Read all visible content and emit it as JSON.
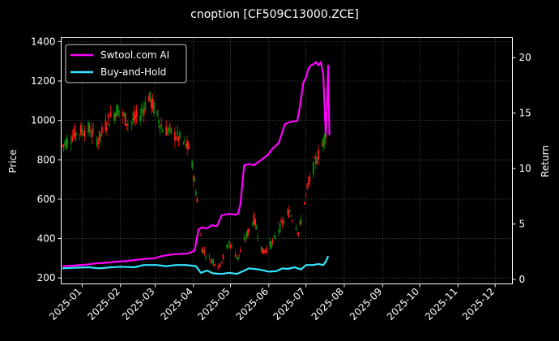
{
  "chart_data": {
    "type": "line",
    "title": "cnoption [CF509C13000.ZCE]",
    "ylabel_left": "Price",
    "ylabel_right": "Return",
    "x_tick_labels": [
      "2025-01",
      "2025-02",
      "2025-03",
      "2025-04",
      "2025-05",
      "2025-06",
      "2025-07",
      "2025-08",
      "2025-09",
      "2025-10",
      "2025-11",
      "2025-12"
    ],
    "x_range": [
      "2024-12-15",
      "2025-12-15"
    ],
    "left_ylim": [
      170,
      1420
    ],
    "left_ticks": [
      200,
      400,
      600,
      800,
      1000,
      1200,
      1400
    ],
    "right_ylim": [
      -0.4,
      21.8
    ],
    "right_ticks": [
      0,
      5,
      10,
      15,
      20
    ],
    "grid": true,
    "legend_position": "upper-left",
    "colors": {
      "up": "#ff1a1a",
      "down": "#0a8c0a",
      "strategy": "#ff00ff",
      "buyhold": "#33e5ff",
      "grid": "#555555",
      "background": "#000000"
    },
    "series": [
      {
        "name": "Swtool.com AI",
        "axis": "right",
        "points": [
          [
            "2024-12-16",
            1.2
          ],
          [
            "2024-12-25",
            1.25
          ],
          [
            "2025-01-06",
            1.35
          ],
          [
            "2025-01-12",
            1.45
          ],
          [
            "2025-01-20",
            1.5
          ],
          [
            "2025-01-28",
            1.6
          ],
          [
            "2025-02-05",
            1.65
          ],
          [
            "2025-02-12",
            1.75
          ],
          [
            "2025-02-20",
            1.85
          ],
          [
            "2025-02-28",
            1.9
          ],
          [
            "2025-03-06",
            2.1
          ],
          [
            "2025-03-14",
            2.25
          ],
          [
            "2025-03-22",
            2.3
          ],
          [
            "2025-03-28",
            2.35
          ],
          [
            "2025-03-31",
            2.5
          ],
          [
            "2025-04-02",
            2.6
          ],
          [
            "2025-04-05",
            4.5
          ],
          [
            "2025-04-08",
            4.7
          ],
          [
            "2025-04-12",
            4.6
          ],
          [
            "2025-04-16",
            4.9
          ],
          [
            "2025-04-20",
            4.8
          ],
          [
            "2025-04-24",
            5.8
          ],
          [
            "2025-04-30",
            5.9
          ],
          [
            "2025-05-05",
            5.85
          ],
          [
            "2025-05-07",
            5.9
          ],
          [
            "2025-05-09",
            6.8
          ],
          [
            "2025-05-12",
            10.3
          ],
          [
            "2025-05-16",
            10.4
          ],
          [
            "2025-05-20",
            10.3
          ],
          [
            "2025-05-26",
            10.8
          ],
          [
            "2025-05-31",
            11.2
          ],
          [
            "2025-06-04",
            11.8
          ],
          [
            "2025-06-09",
            12.3
          ],
          [
            "2025-06-14",
            14.0
          ],
          [
            "2025-06-18",
            14.2
          ],
          [
            "2025-06-24",
            14.3
          ],
          [
            "2025-06-26",
            15.5
          ],
          [
            "2025-06-29",
            17.8
          ],
          [
            "2025-07-01",
            18.2
          ],
          [
            "2025-07-03",
            19.0
          ],
          [
            "2025-07-05",
            19.3
          ],
          [
            "2025-07-07",
            19.4
          ],
          [
            "2025-07-09",
            19.6
          ],
          [
            "2025-07-11",
            19.3
          ],
          [
            "2025-07-13",
            19.6
          ],
          [
            "2025-07-15",
            18.5
          ],
          [
            "2025-07-17",
            13.0
          ],
          [
            "2025-07-18",
            15.5
          ],
          [
            "2025-07-19",
            19.3
          ],
          [
            "2025-07-20",
            13.0
          ]
        ]
      },
      {
        "name": "Buy-and-Hold",
        "axis": "right",
        "points": [
          [
            "2024-12-16",
            1.0
          ],
          [
            "2024-12-25",
            1.05
          ],
          [
            "2025-01-06",
            1.1
          ],
          [
            "2025-01-15",
            1.0
          ],
          [
            "2025-01-24",
            1.1
          ],
          [
            "2025-02-02",
            1.15
          ],
          [
            "2025-02-12",
            1.1
          ],
          [
            "2025-02-20",
            1.3
          ],
          [
            "2025-03-02",
            1.3
          ],
          [
            "2025-03-10",
            1.2
          ],
          [
            "2025-03-18",
            1.3
          ],
          [
            "2025-03-26",
            1.3
          ],
          [
            "2025-04-03",
            1.2
          ],
          [
            "2025-04-07",
            0.6
          ],
          [
            "2025-04-12",
            0.8
          ],
          [
            "2025-04-17",
            0.55
          ],
          [
            "2025-04-24",
            0.5
          ],
          [
            "2025-04-30",
            0.6
          ],
          [
            "2025-05-06",
            0.5
          ],
          [
            "2025-05-12",
            0.8
          ],
          [
            "2025-05-16",
            1.0
          ],
          [
            "2025-05-24",
            0.9
          ],
          [
            "2025-06-01",
            0.7
          ],
          [
            "2025-06-07",
            0.75
          ],
          [
            "2025-06-12",
            1.0
          ],
          [
            "2025-06-16",
            0.95
          ],
          [
            "2025-06-22",
            1.1
          ],
          [
            "2025-06-27",
            0.9
          ],
          [
            "2025-07-01",
            1.3
          ],
          [
            "2025-07-07",
            1.3
          ],
          [
            "2025-07-11",
            1.4
          ],
          [
            "2025-07-15",
            1.3
          ],
          [
            "2025-07-17",
            1.6
          ],
          [
            "2025-07-19",
            2.1
          ]
        ]
      }
    ],
    "candles_region_approx": [
      [
        "2024-12-16",
        870
      ],
      [
        "2024-12-25",
        930
      ],
      [
        "2025-01-05",
        960
      ],
      [
        "2025-01-14",
        900
      ],
      [
        "2025-01-22",
        1000
      ],
      [
        "2025-01-30",
        1060
      ],
      [
        "2025-02-08",
        980
      ],
      [
        "2025-02-17",
        1030
      ],
      [
        "2025-02-24",
        1120
      ],
      [
        "2025-03-07",
        960
      ],
      [
        "2025-03-14",
        940
      ],
      [
        "2025-03-22",
        900
      ],
      [
        "2025-03-29",
        850
      ],
      [
        "2025-04-04",
        600
      ],
      [
        "2025-04-08",
        350
      ],
      [
        "2025-04-14",
        300
      ],
      [
        "2025-04-22",
        260
      ],
      [
        "2025-04-30",
        380
      ],
      [
        "2025-05-07",
        300
      ],
      [
        "2025-05-13",
        400
      ],
      [
        "2025-05-20",
        500
      ],
      [
        "2025-05-27",
        330
      ],
      [
        "2025-06-04",
        380
      ],
      [
        "2025-06-11",
        470
      ],
      [
        "2025-06-18",
        540
      ],
      [
        "2025-06-25",
        430
      ],
      [
        "2025-07-02",
        650
      ],
      [
        "2025-07-08",
        780
      ],
      [
        "2025-07-14",
        870
      ],
      [
        "2025-07-20",
        1010
      ]
    ]
  }
}
